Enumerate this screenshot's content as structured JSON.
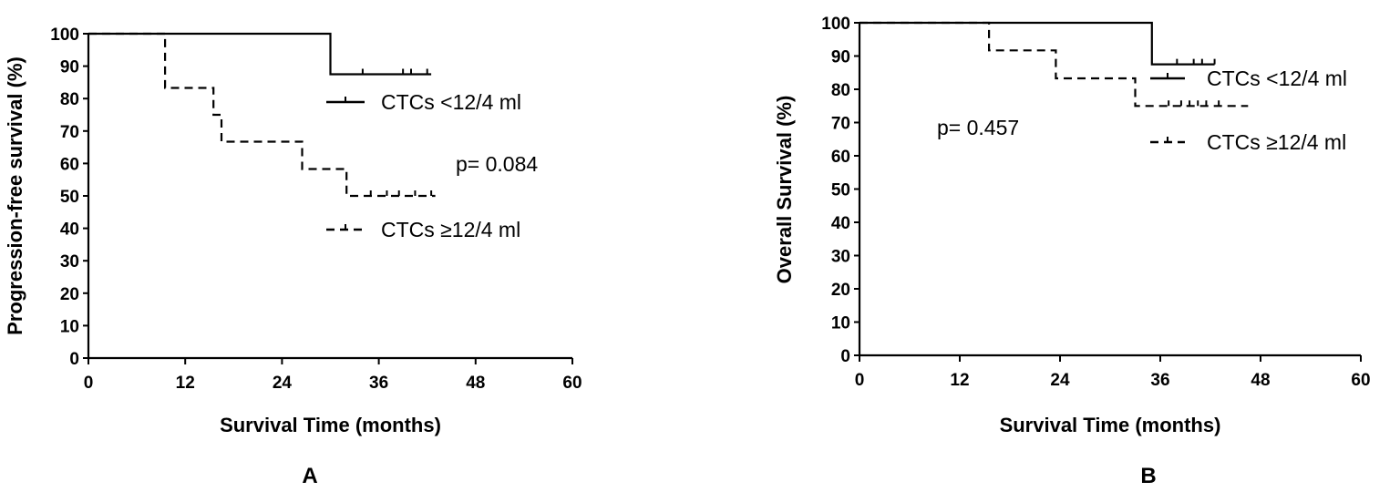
{
  "chart_data": [
    {
      "type": "line",
      "panel_label": "A",
      "xlabel": "Survival Time (months)",
      "ylabel": "Progression-free survival (%)",
      "xlim": [
        0,
        60
      ],
      "ylim": [
        0,
        100
      ],
      "xticks": [
        0,
        12,
        24,
        36,
        48,
        60
      ],
      "yticks": [
        0,
        10,
        20,
        30,
        40,
        50,
        60,
        70,
        80,
        90,
        100
      ],
      "annotation": "p= 0.084",
      "series": [
        {
          "name": "CTCs <12/4 ml",
          "style": "solid",
          "color": "#000000",
          "steps": [
            [
              0,
              100
            ],
            [
              30,
              100
            ],
            [
              30,
              87.5
            ],
            [
              42.5,
              87.5
            ]
          ],
          "censored": [
            [
              34,
              87.5
            ],
            [
              39,
              87.5
            ],
            [
              40,
              87.5
            ],
            [
              42,
              87.5
            ]
          ]
        },
        {
          "name": "CTCs ≥12/4 ml",
          "style": "dashed",
          "color": "#000000",
          "steps": [
            [
              0,
              100
            ],
            [
              9.5,
              100
            ],
            [
              9.5,
              83.3
            ],
            [
              15.5,
              83.3
            ],
            [
              15.5,
              75
            ],
            [
              16.5,
              75
            ],
            [
              16.5,
              66.7
            ],
            [
              26.5,
              66.7
            ],
            [
              26.5,
              58.3
            ],
            [
              32,
              58.3
            ],
            [
              32,
              50
            ],
            [
              43,
              50
            ]
          ],
          "censored": [
            [
              35,
              50
            ],
            [
              37,
              50
            ],
            [
              38.5,
              50
            ],
            [
              40.5,
              50
            ],
            [
              42.5,
              50
            ]
          ]
        }
      ]
    },
    {
      "type": "line",
      "panel_label": "B",
      "xlabel": "Survival Time (months)",
      "ylabel": "Overall Survival (%)",
      "xlim": [
        0,
        60
      ],
      "ylim": [
        0,
        100
      ],
      "xticks": [
        0,
        12,
        24,
        36,
        48,
        60
      ],
      "yticks": [
        0,
        10,
        20,
        30,
        40,
        50,
        60,
        70,
        80,
        90,
        100
      ],
      "annotation": "p= 0.457",
      "series": [
        {
          "name": "CTCs <12/4 ml",
          "style": "solid",
          "color": "#000000",
          "steps": [
            [
              0,
              100
            ],
            [
              35,
              100
            ],
            [
              35,
              87.5
            ],
            [
              42.5,
              87.5
            ]
          ],
          "censored": [
            [
              38,
              87.5
            ],
            [
              40,
              87.5
            ],
            [
              41,
              87.5
            ],
            [
              42.5,
              87.5
            ]
          ]
        },
        {
          "name": "CTCs ≥12/4 ml",
          "style": "dashed",
          "color": "#000000",
          "steps": [
            [
              0,
              100
            ],
            [
              15.5,
              100
            ],
            [
              15.5,
              91.7
            ],
            [
              23.5,
              91.7
            ],
            [
              23.5,
              83.3
            ],
            [
              33,
              83.3
            ],
            [
              33,
              75
            ],
            [
              46.5,
              75
            ]
          ],
          "censored": [
            [
              37,
              75
            ],
            [
              38.5,
              75
            ],
            [
              39.5,
              75
            ],
            [
              40.5,
              75
            ],
            [
              41.5,
              75
            ],
            [
              43,
              75
            ]
          ]
        }
      ]
    }
  ]
}
